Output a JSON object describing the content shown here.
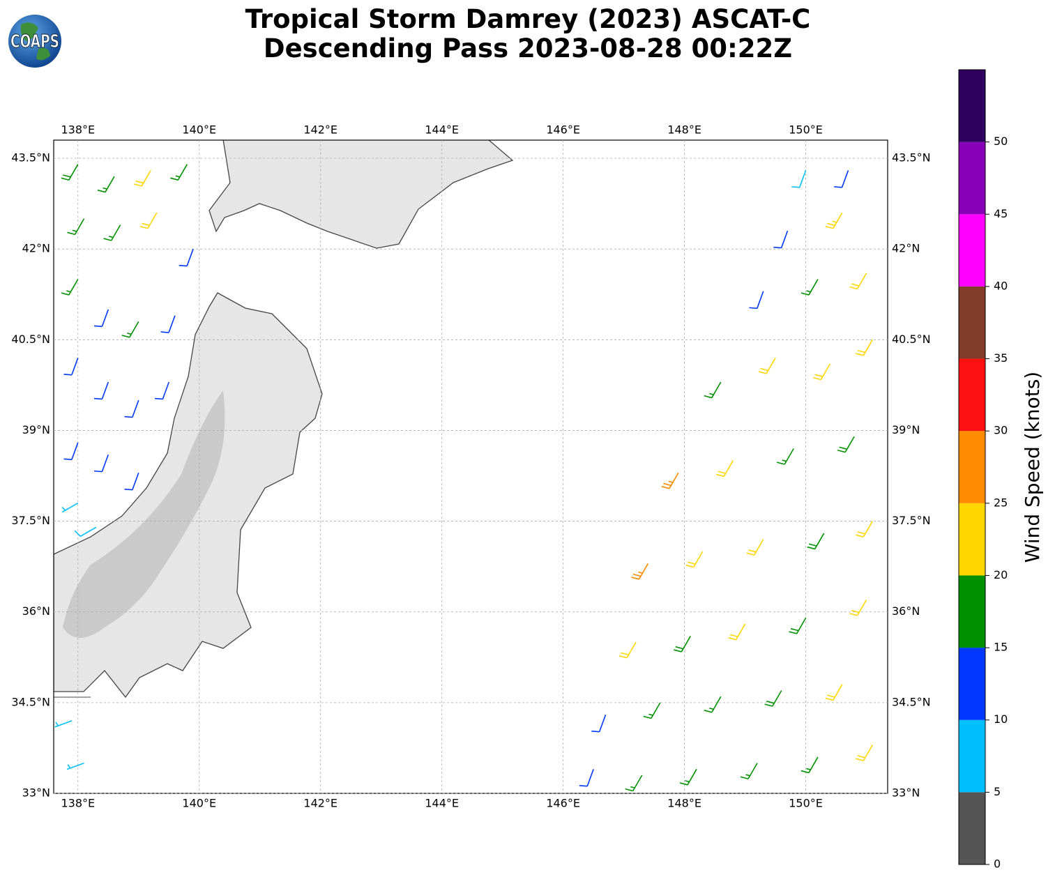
{
  "map": {
    "title": [
      "Tropical Storm Damrey (2023) ASCAT-C",
      "Descending Pass 2023-08-28 00:22Z"
    ],
    "logo": "COAPS",
    "xlim": [
      137.6,
      151.35
    ],
    "ylim": [
      33,
      43.8
    ],
    "xticks": [
      {
        "value": 138,
        "label": "138°E"
      },
      {
        "value": 140,
        "label": "140°E"
      },
      {
        "value": 142,
        "label": "142°E"
      },
      {
        "value": 144,
        "label": "144°E"
      },
      {
        "value": 146,
        "label": "146°E"
      },
      {
        "value": 148,
        "label": "148°E"
      },
      {
        "value": 150,
        "label": "150°E"
      }
    ],
    "yticks": [
      {
        "value": 33,
        "label": "33°N"
      },
      {
        "value": 34.5,
        "label": "34.5°N"
      },
      {
        "value": 36,
        "label": "36°N"
      },
      {
        "value": 37.5,
        "label": "37.5°N"
      },
      {
        "value": 39,
        "label": "39°N"
      },
      {
        "value": 40.5,
        "label": "40.5°N"
      },
      {
        "value": 42,
        "label": "42°N"
      },
      {
        "value": 43.5,
        "label": "43.5°N"
      }
    ],
    "grid": true,
    "colorbar": {
      "label": "Wind Speed (knots)",
      "lim": [
        0,
        55
      ],
      "ticks": [
        0,
        5,
        10,
        15,
        20,
        25,
        30,
        35,
        40,
        45,
        50
      ],
      "bins": [
        0,
        5,
        10,
        15,
        20,
        25,
        30,
        35,
        40,
        45,
        50,
        55
      ],
      "colors": [
        "#555555",
        "#00bfff",
        "#0038ff",
        "#009000",
        "#ffd700",
        "#ff8c00",
        "#ff1010",
        "#823d2a",
        "#ff00ff",
        "#8800b8",
        "#2e0060"
      ]
    },
    "barbs": [
      {
        "lon": 138.0,
        "lat": 43.4,
        "speed": 18,
        "dir": 210
      },
      {
        "lon": 138.6,
        "lat": 43.2,
        "speed": 17,
        "dir": 210
      },
      {
        "lon": 139.2,
        "lat": 43.3,
        "speed": 22,
        "dir": 210
      },
      {
        "lon": 139.8,
        "lat": 43.4,
        "speed": 17,
        "dir": 210
      },
      {
        "lon": 138.1,
        "lat": 42.5,
        "speed": 16,
        "dir": 210
      },
      {
        "lon": 138.7,
        "lat": 42.4,
        "speed": 17,
        "dir": 210
      },
      {
        "lon": 139.3,
        "lat": 42.6,
        "speed": 21,
        "dir": 210
      },
      {
        "lon": 139.9,
        "lat": 42.0,
        "speed": 12,
        "dir": 200
      },
      {
        "lon": 138.0,
        "lat": 41.5,
        "speed": 16,
        "dir": 210
      },
      {
        "lon": 138.5,
        "lat": 41.0,
        "speed": 12,
        "dir": 200
      },
      {
        "lon": 139.0,
        "lat": 40.8,
        "speed": 16,
        "dir": 210
      },
      {
        "lon": 139.6,
        "lat": 40.9,
        "speed": 12,
        "dir": 200
      },
      {
        "lon": 138.0,
        "lat": 40.2,
        "speed": 12,
        "dir": 200
      },
      {
        "lon": 138.5,
        "lat": 39.8,
        "speed": 11,
        "dir": 200
      },
      {
        "lon": 139.0,
        "lat": 39.5,
        "speed": 12,
        "dir": 200
      },
      {
        "lon": 139.5,
        "lat": 39.8,
        "speed": 11,
        "dir": 200
      },
      {
        "lon": 138.0,
        "lat": 38.8,
        "speed": 12,
        "dir": 200
      },
      {
        "lon": 138.5,
        "lat": 38.6,
        "speed": 11,
        "dir": 200
      },
      {
        "lon": 139.0,
        "lat": 38.3,
        "speed": 12,
        "dir": 200
      },
      {
        "lon": 138.0,
        "lat": 37.8,
        "speed": 7,
        "dir": 240
      },
      {
        "lon": 138.3,
        "lat": 37.4,
        "speed": 8,
        "dir": 240
      },
      {
        "lon": 137.9,
        "lat": 34.2,
        "speed": 7,
        "dir": 250
      },
      {
        "lon": 138.1,
        "lat": 33.5,
        "speed": 7,
        "dir": 250
      },
      {
        "lon": 150.0,
        "lat": 43.3,
        "speed": 8,
        "dir": 200
      },
      {
        "lon": 150.7,
        "lat": 43.3,
        "speed": 12,
        "dir": 200
      },
      {
        "lon": 149.7,
        "lat": 42.3,
        "speed": 12,
        "dir": 200
      },
      {
        "lon": 150.6,
        "lat": 42.6,
        "speed": 23,
        "dir": 210
      },
      {
        "lon": 149.3,
        "lat": 41.3,
        "speed": 12,
        "dir": 200
      },
      {
        "lon": 150.2,
        "lat": 41.5,
        "speed": 17,
        "dir": 210
      },
      {
        "lon": 151.0,
        "lat": 41.6,
        "speed": 22,
        "dir": 210
      },
      {
        "lon": 148.6,
        "lat": 39.8,
        "speed": 17,
        "dir": 210
      },
      {
        "lon": 149.5,
        "lat": 40.2,
        "speed": 22,
        "dir": 210
      },
      {
        "lon": 150.4,
        "lat": 40.1,
        "speed": 22,
        "dir": 210
      },
      {
        "lon": 151.1,
        "lat": 40.5,
        "speed": 22,
        "dir": 210
      },
      {
        "lon": 147.9,
        "lat": 38.3,
        "speed": 27,
        "dir": 210
      },
      {
        "lon": 148.8,
        "lat": 38.5,
        "speed": 22,
        "dir": 210
      },
      {
        "lon": 149.8,
        "lat": 38.7,
        "speed": 17,
        "dir": 210
      },
      {
        "lon": 150.8,
        "lat": 38.9,
        "speed": 18,
        "dir": 210
      },
      {
        "lon": 147.4,
        "lat": 36.8,
        "speed": 27,
        "dir": 210
      },
      {
        "lon": 148.3,
        "lat": 37.0,
        "speed": 22,
        "dir": 210
      },
      {
        "lon": 149.3,
        "lat": 37.2,
        "speed": 22,
        "dir": 210
      },
      {
        "lon": 150.3,
        "lat": 37.3,
        "speed": 18,
        "dir": 210
      },
      {
        "lon": 151.1,
        "lat": 37.5,
        "speed": 22,
        "dir": 210
      },
      {
        "lon": 147.2,
        "lat": 35.5,
        "speed": 22,
        "dir": 210
      },
      {
        "lon": 148.1,
        "lat": 35.6,
        "speed": 18,
        "dir": 210
      },
      {
        "lon": 149.0,
        "lat": 35.8,
        "speed": 22,
        "dir": 210
      },
      {
        "lon": 150.0,
        "lat": 35.9,
        "speed": 18,
        "dir": 210
      },
      {
        "lon": 151.0,
        "lat": 36.2,
        "speed": 22,
        "dir": 210
      },
      {
        "lon": 146.7,
        "lat": 34.3,
        "speed": 12,
        "dir": 200
      },
      {
        "lon": 147.6,
        "lat": 34.5,
        "speed": 17,
        "dir": 210
      },
      {
        "lon": 148.6,
        "lat": 34.6,
        "speed": 17,
        "dir": 210
      },
      {
        "lon": 149.6,
        "lat": 34.7,
        "speed": 18,
        "dir": 210
      },
      {
        "lon": 150.6,
        "lat": 34.8,
        "speed": 22,
        "dir": 210
      },
      {
        "lon": 146.5,
        "lat": 33.4,
        "speed": 12,
        "dir": 200
      },
      {
        "lon": 147.3,
        "lat": 33.3,
        "speed": 17,
        "dir": 210
      },
      {
        "lon": 148.2,
        "lat": 33.4,
        "speed": 17,
        "dir": 210
      },
      {
        "lon": 149.2,
        "lat": 33.5,
        "speed": 17,
        "dir": 210
      },
      {
        "lon": 150.2,
        "lat": 33.6,
        "speed": 17,
        "dir": 210
      },
      {
        "lon": 151.1,
        "lat": 33.8,
        "speed": 22,
        "dir": 210
      }
    ]
  }
}
